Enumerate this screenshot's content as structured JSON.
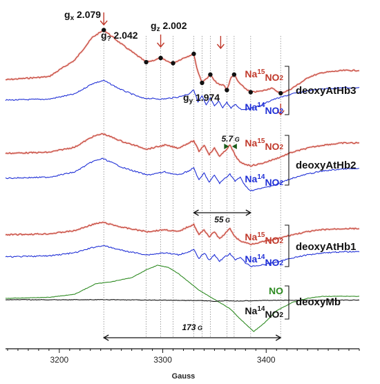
{
  "chart_data": {
    "type": "line",
    "xlabel": "Gauss",
    "xlim": [
      3148,
      3490
    ],
    "x_ticks": [
      3200,
      3300,
      3400
    ],
    "x_tick_labels": [
      "3200",
      "3300",
      "3400"
    ],
    "colors": {
      "na15": "#c0392b",
      "na14": "#1f2fd6",
      "no": "#2e8b22",
      "mb_nitrite": "#111111",
      "arrow": "#c0392b",
      "guide": "#8a8a8a",
      "dot": "#111111"
    },
    "g_markers": [
      {
        "g": "g",
        "sub": "x",
        "value": "2.079",
        "field": 3243
      },
      {
        "g": "g",
        "sub": "?",
        "value": "2.042",
        "field": 3298
      },
      {
        "g": "g",
        "sub": "z",
        "value": "2.002",
        "field": 3356
      },
      {
        "g": "g",
        "sub": "y",
        "value": "1.974",
        "field": 3414
      }
    ],
    "guide_fields": [
      3243,
      3284,
      3298,
      3310,
      3330,
      3338,
      3346,
      3362,
      3369,
      3385,
      3414
    ],
    "groups": [
      {
        "name": "deoxyAtHb3",
        "labels": [
          {
            "pre": "Na",
            "sup": "15",
            "post": "NO",
            "sub": "2",
            "color": "#c0392b"
          },
          {
            "pre": "Na",
            "sup": "14",
            "post": "NO",
            "sub": "2",
            "color": "#1f2fd6"
          }
        ]
      },
      {
        "name": "deoxyAtHb2",
        "labels": [
          {
            "pre": "Na",
            "sup": "15",
            "post": "NO",
            "sub": "2",
            "color": "#c0392b"
          },
          {
            "pre": "Na",
            "sup": "14",
            "post": "NO",
            "sub": "2",
            "color": "#1f2fd6"
          }
        ]
      },
      {
        "name": "deoxyAtHb1",
        "labels": [
          {
            "pre": "Na",
            "sup": "15",
            "post": "NO",
            "sub": "2",
            "color": "#c0392b"
          },
          {
            "pre": "Na",
            "sup": "14",
            "post": "NO",
            "sub": "2",
            "color": "#1f2fd6"
          }
        ]
      },
      {
        "name": "deoxyMb",
        "labels": [
          {
            "pre": "NO",
            "sup": "",
            "post": "",
            "sub": "",
            "color": "#2e8b22"
          },
          {
            "pre": "Na",
            "sup": "14",
            "post": "NO",
            "sub": "2",
            "color": "#111111"
          }
        ]
      }
    ],
    "measurements": [
      {
        "value": "5.7",
        "unit": "G",
        "from": 3362,
        "to": 3369
      },
      {
        "value": "55",
        "unit": "G",
        "from": 3330,
        "to": 3385
      },
      {
        "value": "173",
        "unit": "G",
        "from": 3243,
        "to": 3414
      }
    ],
    "series": [
      {
        "group": "deoxyAtHb3",
        "kind": "na15",
        "offset": 0,
        "x": [
          3148,
          3190,
          3215,
          3232,
          3243,
          3262,
          3284,
          3292,
          3298,
          3304,
          3310,
          3320,
          3330,
          3333,
          3338,
          3342,
          3346,
          3350,
          3355,
          3359,
          3362,
          3366,
          3369,
          3373,
          3378,
          3385,
          3395,
          3405,
          3414,
          3422,
          3430,
          3442,
          3455,
          3475,
          3490
        ],
        "y": [
          0.03,
          0.06,
          0.22,
          0.44,
          0.51,
          0.36,
          0.2,
          0.22,
          0.24,
          0.21,
          0.19,
          0.24,
          0.28,
          0.14,
          0.0,
          0.04,
          0.08,
          0.02,
          -0.02,
          -0.02,
          -0.07,
          0.05,
          0.08,
          0.01,
          -0.04,
          -0.09,
          -0.08,
          -0.05,
          -0.1,
          -0.07,
          -0.02,
          0.06,
          0.1,
          0.12,
          0.12
        ]
      },
      {
        "group": "deoxyAtHb3",
        "kind": "na14",
        "offset": 0,
        "x": [
          3148,
          3190,
          3215,
          3232,
          3243,
          3260,
          3280,
          3300,
          3315,
          3325,
          3330,
          3334,
          3338,
          3342,
          3346,
          3350,
          3354,
          3358,
          3362,
          3366,
          3370,
          3376,
          3385,
          3395,
          3405,
          3415,
          3425,
          3440,
          3455,
          3475,
          3490
        ],
        "y": [
          0.0,
          0.01,
          0.06,
          0.16,
          0.19,
          0.1,
          0.02,
          0.01,
          0.03,
          0.06,
          0.1,
          -0.02,
          0.04,
          -0.05,
          0.02,
          -0.06,
          -0.01,
          -0.07,
          -0.02,
          -0.08,
          -0.04,
          -0.09,
          -0.08,
          -0.05,
          0.0,
          0.03,
          0.06,
          0.09,
          0.11,
          0.12,
          0.12
        ]
      },
      {
        "group": "deoxyAtHb2",
        "kind": "na15",
        "offset": 0,
        "x": [
          3148,
          3190,
          3215,
          3232,
          3242,
          3262,
          3285,
          3302,
          3315,
          3325,
          3330,
          3335,
          3340,
          3345,
          3350,
          3355,
          3360,
          3365,
          3370,
          3375,
          3385,
          3395,
          3410,
          3425,
          3440,
          3455,
          3475,
          3490
        ],
        "y": [
          0.0,
          0.01,
          0.06,
          0.16,
          0.19,
          0.11,
          0.04,
          0.08,
          0.05,
          0.1,
          0.12,
          0.02,
          0.08,
          -0.01,
          0.05,
          -0.03,
          0.02,
          0.08,
          -0.02,
          -0.09,
          -0.12,
          -0.1,
          -0.05,
          0.01,
          0.05,
          0.08,
          0.1,
          0.1
        ]
      },
      {
        "group": "deoxyAtHb2",
        "kind": "na14",
        "offset": 0,
        "x": [
          3148,
          3190,
          3215,
          3232,
          3242,
          3262,
          3285,
          3302,
          3315,
          3325,
          3330,
          3335,
          3340,
          3345,
          3350,
          3355,
          3360,
          3365,
          3370,
          3375,
          3380,
          3385,
          3395,
          3410,
          3425,
          3440,
          3455,
          3475,
          3490
        ],
        "y": [
          0.0,
          0.01,
          0.06,
          0.16,
          0.19,
          0.1,
          0.03,
          0.06,
          0.03,
          0.07,
          0.1,
          -0.02,
          0.05,
          -0.04,
          0.03,
          -0.05,
          0.0,
          0.04,
          -0.03,
          0.01,
          -0.08,
          -0.12,
          -0.1,
          -0.06,
          0.0,
          0.04,
          0.07,
          0.09,
          0.09
        ]
      },
      {
        "group": "deoxyAtHb1",
        "kind": "na15",
        "offset": 0,
        "x": [
          3148,
          3190,
          3215,
          3232,
          3242,
          3262,
          3285,
          3302,
          3315,
          3325,
          3330,
          3335,
          3340,
          3345,
          3350,
          3355,
          3360,
          3365,
          3370,
          3375,
          3385,
          3395,
          3410,
          3425,
          3440,
          3455,
          3475,
          3490
        ],
        "y": [
          0.0,
          0.01,
          0.04,
          0.1,
          0.12,
          0.07,
          0.03,
          0.05,
          0.03,
          0.08,
          0.1,
          0.0,
          0.05,
          -0.02,
          0.03,
          -0.04,
          0.01,
          0.06,
          -0.02,
          -0.06,
          -0.09,
          -0.07,
          -0.04,
          0.0,
          0.03,
          0.05,
          0.06,
          0.06
        ]
      },
      {
        "group": "deoxyAtHb1",
        "kind": "na14",
        "offset": 0,
        "x": [
          3148,
          3190,
          3215,
          3232,
          3242,
          3262,
          3285,
          3302,
          3315,
          3325,
          3330,
          3335,
          3340,
          3345,
          3350,
          3355,
          3360,
          3365,
          3370,
          3375,
          3380,
          3385,
          3395,
          3410,
          3425,
          3440,
          3455,
          3475,
          3490
        ],
        "y": [
          0.0,
          0.01,
          0.04,
          0.09,
          0.11,
          0.06,
          0.02,
          0.04,
          0.02,
          0.05,
          0.07,
          -0.02,
          0.04,
          -0.03,
          0.02,
          -0.04,
          0.0,
          0.03,
          -0.03,
          0.0,
          -0.06,
          -0.09,
          -0.08,
          -0.05,
          -0.01,
          0.02,
          0.04,
          0.05,
          0.05
        ]
      },
      {
        "group": "deoxyMb",
        "kind": "no",
        "offset": 0,
        "x": [
          3148,
          3190,
          3215,
          3235,
          3250,
          3270,
          3285,
          3295,
          3305,
          3315,
          3325,
          3335,
          3345,
          3355,
          3365,
          3375,
          3388,
          3398,
          3410,
          3425,
          3440,
          3455,
          3475,
          3490
        ],
        "y": [
          0.0,
          0.005,
          0.02,
          0.07,
          0.08,
          0.1,
          0.14,
          0.16,
          0.15,
          0.12,
          0.08,
          0.04,
          0.01,
          -0.02,
          -0.05,
          -0.1,
          -0.16,
          -0.12,
          -0.06,
          -0.02,
          0.0,
          0.01,
          0.01,
          0.01
        ]
      },
      {
        "group": "deoxyMb",
        "kind": "mb_nitrite",
        "offset": 0,
        "x": [
          3148,
          3200,
          3250,
          3300,
          3340,
          3350,
          3360,
          3370,
          3400,
          3450,
          3490
        ],
        "y": [
          0.0,
          0.0,
          0.0,
          -0.002,
          -0.004,
          -0.008,
          -0.004,
          -0.006,
          -0.003,
          -0.002,
          -0.002
        ]
      }
    ]
  }
}
